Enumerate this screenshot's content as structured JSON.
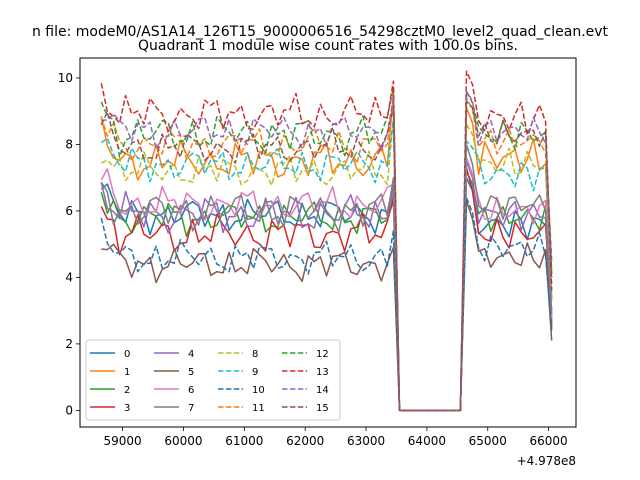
{
  "chart_data": {
    "type": "line",
    "suptitle": "n file: modeM0/AS1A14_126T15_9000006516_54298cztM0_level2_quad_clean.evt",
    "title": "Quadrant 1 module wise count rates with 100.0s bins.",
    "xlabel": "",
    "ylabel": "",
    "x_offset_label": "+4.978e8",
    "xlim": [
      58300,
      66450
    ],
    "ylim": [
      -0.5,
      10.6
    ],
    "xticks": [
      59000,
      60000,
      61000,
      62000,
      63000,
      64000,
      65000,
      66000
    ],
    "xtick_labels": [
      "59000",
      "60000",
      "61000",
      "62000",
      "63000",
      "64000",
      "65000",
      "66000"
    ],
    "yticks": [
      0,
      2,
      4,
      6,
      8,
      10
    ],
    "ytick_labels": [
      "0",
      "2",
      "4",
      "6",
      "8",
      "10"
    ],
    "x_start": 58650,
    "bin": 100,
    "gap": {
      "start": 63550,
      "end": 64550,
      "value": 0
    },
    "seg2_x": [
      64650,
      64750,
      64850,
      64950,
      65050,
      65150,
      65250,
      65350,
      65450,
      65550,
      65650,
      65750,
      65850,
      65950,
      66050
    ],
    "legend_position": "lower-left",
    "legend_columns": 4,
    "series": [
      {
        "name": "0",
        "color": "#1f77b4",
        "style": "solid",
        "mean1": 5.9,
        "amp1": 0.35,
        "last1": 6.8,
        "mean2": 5.6,
        "amp2": 0.35,
        "peak2": 7.0,
        "end2": 3.0
      },
      {
        "name": "1",
        "color": "#ff7f0e",
        "style": "solid",
        "mean1": 7.5,
        "amp1": 0.4,
        "last1": 9.6,
        "mean2": 7.6,
        "amp2": 0.4,
        "peak2": 9.1,
        "end2": 3.3
      },
      {
        "name": "2",
        "color": "#2ca02c",
        "style": "solid",
        "mean1": 5.8,
        "amp1": 0.35,
        "last1": 6.3,
        "mean2": 5.8,
        "amp2": 0.3,
        "peak2": 7.2,
        "end2": 2.6
      },
      {
        "name": "3",
        "color": "#d62728",
        "style": "solid",
        "mean1": 5.3,
        "amp1": 0.4,
        "last1": 6.4,
        "mean2": 5.3,
        "amp2": 0.35,
        "peak2": 7.3,
        "end2": 2.5
      },
      {
        "name": "4",
        "color": "#9467bd",
        "style": "solid",
        "mean1": 5.9,
        "amp1": 0.4,
        "last1": 6.6,
        "mean2": 5.9,
        "amp2": 0.35,
        "peak2": 7.5,
        "end2": 2.7
      },
      {
        "name": "5",
        "color": "#8c564b",
        "style": "solid",
        "mean1": 4.4,
        "amp1": 0.35,
        "last1": 4.9,
        "mean2": 4.6,
        "amp2": 0.3,
        "peak2": 6.3,
        "end2": 2.1
      },
      {
        "name": "6",
        "color": "#e377c2",
        "style": "solid",
        "mean1": 6.2,
        "amp1": 0.35,
        "last1": 6.8,
        "mean2": 6.0,
        "amp2": 0.3,
        "peak2": 7.6,
        "end2": 2.8
      },
      {
        "name": "7",
        "color": "#7f7f7f",
        "style": "solid",
        "mean1": 6.0,
        "amp1": 0.4,
        "last1": 7.0,
        "mean2": 6.2,
        "amp2": 0.3,
        "peak2": 8.0,
        "end2": 2.9
      },
      {
        "name": "8",
        "color": "#bcbd22",
        "style": "dashed",
        "mean1": 7.2,
        "amp1": 0.35,
        "last1": 8.8,
        "mean2": 7.4,
        "amp2": 0.35,
        "peak2": 8.6,
        "end2": 4.2
      },
      {
        "name": "9",
        "color": "#17becf",
        "style": "dashed",
        "mean1": 7.4,
        "amp1": 0.35,
        "last1": 8.7,
        "mean2": 7.1,
        "amp2": 0.35,
        "peak2": 8.1,
        "end2": 3.4
      },
      {
        "name": "10",
        "color": "#1f77b4",
        "style": "dashed",
        "mean1": 4.6,
        "amp1": 0.35,
        "last1": 5.4,
        "mean2": 4.9,
        "amp2": 0.3,
        "peak2": 6.4,
        "end2": 2.4
      },
      {
        "name": "11",
        "color": "#ff7f0e",
        "style": "dashed",
        "mean1": 8.0,
        "amp1": 0.35,
        "last1": 9.3,
        "mean2": 8.1,
        "amp2": 0.3,
        "peak2": 9.4,
        "end2": 3.8
      },
      {
        "name": "12",
        "color": "#2ca02c",
        "style": "dashed",
        "mean1": 8.3,
        "amp1": 0.4,
        "last1": 9.7,
        "mean2": 8.3,
        "amp2": 0.35,
        "peak2": 9.6,
        "end2": 4.0
      },
      {
        "name": "13",
        "color": "#d62728",
        "style": "dashed",
        "mean1": 8.9,
        "amp1": 0.4,
        "last1": 9.9,
        "mean2": 8.8,
        "amp2": 0.4,
        "peak2": 10.2,
        "end2": 3.6
      },
      {
        "name": "14",
        "color": "#9467bd",
        "style": "dashed",
        "mean1": 8.4,
        "amp1": 0.35,
        "last1": 9.4,
        "mean2": 8.4,
        "amp2": 0.3,
        "peak2": 9.6,
        "end2": 4.5
      },
      {
        "name": "15",
        "color": "#8c564b",
        "style": "dashed",
        "mean1": 7.9,
        "amp1": 0.35,
        "last1": 9.1,
        "mean2": 8.3,
        "amp2": 0.3,
        "peak2": 9.3,
        "end2": 4.1
      }
    ]
  }
}
